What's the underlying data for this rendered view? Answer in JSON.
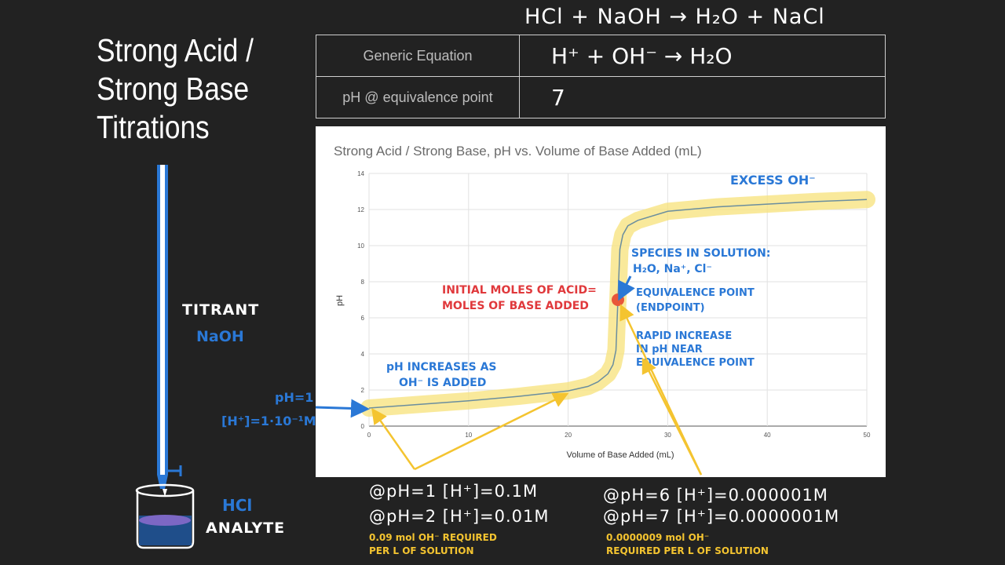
{
  "slide": {
    "title_lines": [
      "Strong Acid /",
      "Strong Base",
      "Titrations"
    ],
    "top_equation": "HCl + NaOH → H₂O + NaCl"
  },
  "info_table": {
    "rows": [
      {
        "label": "Generic Equation",
        "value": "H⁺ + OH⁻ → H₂O"
      },
      {
        "label": "pH @ equivalence point",
        "value": "7"
      }
    ]
  },
  "burette": {
    "titrant_label": "TITRANT",
    "titrant_name": "NaOH",
    "analyte_name": "HCl",
    "analyte_label": "ANALYTE",
    "initial_ph": "pH=1",
    "initial_conc": "[H⁺]=1·10⁻¹M"
  },
  "annotations": {
    "excess": "EXCESS OH⁻",
    "species_line1": "SPECIES IN SOLUTION:",
    "species_line2": "H₂O, Na⁺, Cl⁻",
    "equiv_line1": "EQUIVALENCE POINT",
    "equiv_line2": "(ENDPOINT)",
    "moles_line1": "INITIAL MOLES OF ACID=",
    "moles_line2": "MOLES OF BASE ADDED",
    "rapid_line1": "RAPID INCREASE",
    "rapid_line2": "IN pH NEAR",
    "rapid_line3": "EQUIVALENCE POINT",
    "ph_inc_line1": "pH INCREASES AS",
    "ph_inc_line2": "OH⁻ IS ADDED"
  },
  "bottom_notes": {
    "left_line1": "@pH=1  [H⁺]=0.1M",
    "left_line2": "@pH=2  [H⁺]=0.01M",
    "left_note1": "0.09 mol OH⁻ REQUIRED",
    "left_note2": "PER L OF SOLUTION",
    "right_line1": "@pH=6  [H⁺]=0.000001M",
    "right_line2": "@pH=7  [H⁺]=0.0000001M",
    "right_note1": "0.0000009 mol OH⁻",
    "right_note2": "REQUIRED PER L OF SOLUTION"
  },
  "colors": {
    "background": "#222222",
    "curve": "#6b8e9e",
    "highlight": "#f7e27a",
    "equivalence_dot": "#e8573a",
    "annotation_blue": "#2a78d6",
    "annotation_red": "#e0393c",
    "arrow_yellow": "#f4c430"
  },
  "chart_data": {
    "type": "line",
    "title": "Strong Acid / Strong Base, pH vs. Volume of Base Added (mL)",
    "xlabel": "Volume of Base Added (mL)",
    "ylabel": "pH",
    "xlim": [
      0,
      50
    ],
    "ylim": [
      0,
      14
    ],
    "xticks": [
      0,
      10,
      20,
      30,
      40,
      50
    ],
    "yticks": [
      0,
      2,
      4,
      6,
      8,
      10,
      12,
      14
    ],
    "grid": true,
    "x": [
      0,
      5,
      10,
      15,
      20,
      22,
      23,
      24,
      24.5,
      24.8,
      25,
      25.2,
      25.5,
      26,
      27,
      30,
      35,
      40,
      45,
      50
    ],
    "y": [
      1.0,
      1.2,
      1.4,
      1.65,
      1.95,
      2.2,
      2.45,
      2.9,
      3.4,
      4.2,
      7.0,
      9.8,
      10.6,
      11.1,
      11.4,
      11.9,
      12.15,
      12.3,
      12.45,
      12.55
    ],
    "equivalence_point": {
      "x": 25,
      "y": 7
    }
  }
}
